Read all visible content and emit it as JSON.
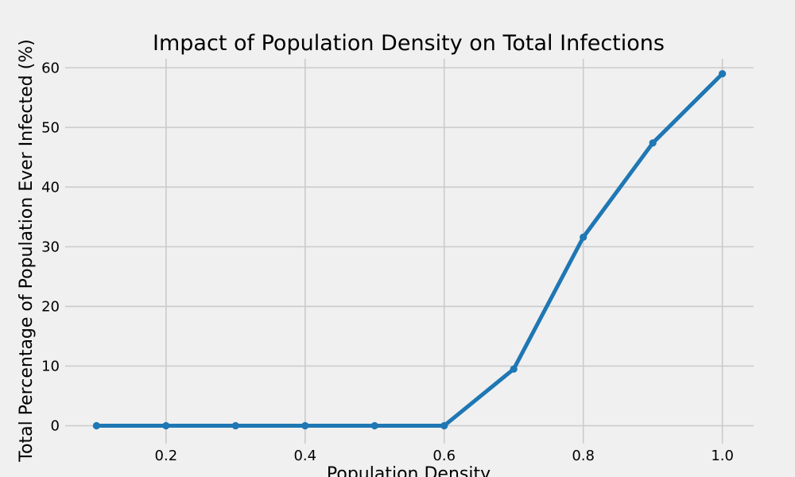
{
  "chart_data": {
    "type": "line",
    "title": "Impact of Population Density on Total Infections",
    "xlabel": "Population Density",
    "ylabel": "Total Percentage of Population Ever Infected (%)",
    "xlim": [
      0.055,
      1.045
    ],
    "ylim": [
      -3,
      61.5
    ],
    "x_ticks": [
      0.2,
      0.4,
      0.6,
      0.8,
      1.0
    ],
    "x_tick_labels": [
      "0.2",
      "0.4",
      "0.6",
      "0.8",
      "1.0"
    ],
    "y_ticks": [
      0,
      10,
      20,
      30,
      40,
      50,
      60
    ],
    "y_tick_labels": [
      "0",
      "10",
      "20",
      "30",
      "40",
      "50",
      "60"
    ],
    "grid": true,
    "series": [
      {
        "x": [
          0.1,
          0.2,
          0.3,
          0.4,
          0.5,
          0.6,
          0.7,
          0.8,
          0.9,
          1.0
        ],
        "values": [
          0,
          0,
          0,
          0,
          0,
          0,
          9.5,
          31.6,
          47.4,
          59.0
        ],
        "color": "#1f77b4"
      }
    ]
  },
  "colors": {
    "background": "#f0f0f0",
    "grid": "#cbcbcb",
    "line": "#1f77b4"
  }
}
